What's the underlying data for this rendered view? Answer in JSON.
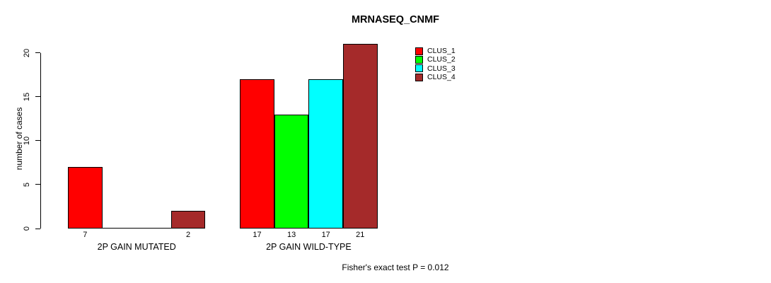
{
  "title": "MRNASEQ_CNMF",
  "footnote": "Fisher's exact test P = 0.012",
  "chart_data": {
    "type": "bar",
    "categories": [
      "2P GAIN MUTATED",
      "2P GAIN WILD-TYPE"
    ],
    "series": [
      {
        "name": "CLUS_1",
        "color": "#FF0000",
        "values": [
          7,
          17
        ]
      },
      {
        "name": "CLUS_2",
        "color": "#00FF00",
        "values": [
          0,
          13
        ]
      },
      {
        "name": "CLUS_3",
        "color": "#00FFFF",
        "values": [
          0,
          17
        ]
      },
      {
        "name": "CLUS_4",
        "color": "#A52A2A",
        "values": [
          2,
          21
        ]
      }
    ],
    "ylabel": "number of cases",
    "xlabel": "",
    "yticks": [
      0,
      5,
      10,
      15,
      20
    ],
    "ylim": [
      0,
      21
    ],
    "grid": false,
    "legend_position": "inside-top-right",
    "bar_value_labels_shown_below_axis": [
      [
        "7",
        "",
        "",
        "2"
      ],
      [
        "17",
        "13",
        "17",
        "21"
      ]
    ]
  }
}
